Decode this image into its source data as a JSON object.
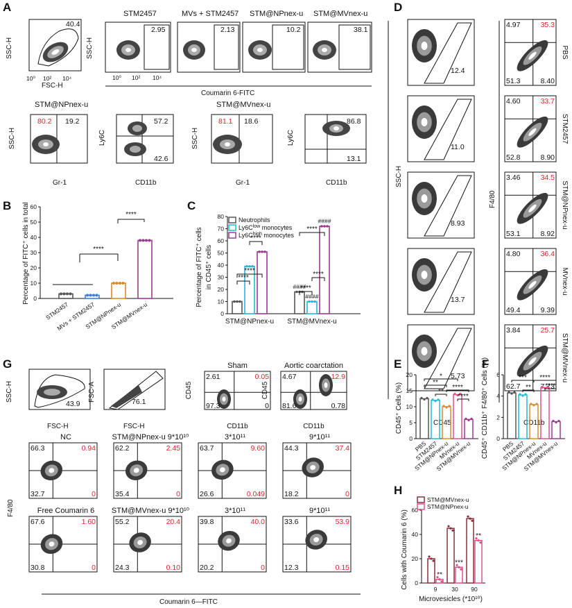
{
  "figure": {
    "panel_labels": [
      "A",
      "B",
      "C",
      "D",
      "E",
      "F",
      "G",
      "H"
    ],
    "A": {
      "scatter_xlabel": "FSC-H",
      "scatter_ylabel": "SSC-H",
      "scatter_gate": "40.4",
      "fitc_xlabel": "Coumarin 6-FITC",
      "fitc_panels": [
        {
          "title": "STM2457",
          "value": "2.95"
        },
        {
          "title": "MVs + STM2457",
          "value": "2.13"
        },
        {
          "title": "STM@NPnex-u",
          "value": "10.2"
        },
        {
          "title": "STM@MVnex-u",
          "value": "38.1"
        }
      ],
      "gr1_panels": [
        {
          "title": "STM@NPnex-u",
          "left": "80.2",
          "right": "19.2"
        },
        {
          "title": "STM@MVnex-u",
          "left": "81.1",
          "right": "18.6"
        }
      ],
      "cd11b_panels": [
        {
          "top": "57.2",
          "bottom": "42.6"
        },
        {
          "top": "86.8",
          "bottom": "13.1"
        }
      ],
      "gr1_xlabel": "Gr-1",
      "cd11b_xlabel": "CD11b",
      "ly6c_ylabel": "Ly6C",
      "ticks_log": [
        "10⁰",
        "10²",
        "10⁴"
      ]
    },
    "D": {
      "ssc_label": "SSC-H",
      "cd45_label": "CD45",
      "f480_label": "F4/80",
      "cd11b_label": "CD11b",
      "gates": [
        "12.4",
        "11.0",
        "8.93",
        "13.7",
        "5.73"
      ],
      "quads": [
        {
          "name": "PBS",
          "ul": "4.97",
          "ur": "35.3",
          "ll": "51.3",
          "lr": "8.40"
        },
        {
          "name": "STM2457",
          "ul": "4.60",
          "ur": "33.7",
          "ll": "52.8",
          "lr": "8.90"
        },
        {
          "name": "STM@NPnex-u",
          "ul": "3.46",
          "ur": "34.5",
          "ll": "53.1",
          "lr": "8.92"
        },
        {
          "name": "MVnex-u",
          "ul": "4.80",
          "ur": "36.4",
          "ll": "49.4",
          "lr": "9.39"
        },
        {
          "name": "STM@MVnex-u",
          "ul": "3.84",
          "ur": "25.7",
          "ll": "62.7",
          "lr": "7.73"
        }
      ]
    },
    "G": {
      "fsc_ssc": {
        "xlabel": "FSC-H",
        "ylabel": "SSC-H",
        "value": "43.9"
      },
      "fsc_fsca": {
        "xlabel": "FSC-H",
        "ylabel": "FSC-A",
        "value": "76.1"
      },
      "cd45_panels": [
        {
          "title": "Sham",
          "ul": "2.61",
          "ur": "0.05",
          "ll": "97.3",
          "lr": "0"
        },
        {
          "title": "Aortic coarctation",
          "ul": "4.67",
          "ur": "12.9",
          "ll": "81.6",
          "lr": "0.78"
        }
      ],
      "row2": [
        {
          "title": "NC",
          "ul": "66.3",
          "ur": "0.94",
          "ll": "32.7",
          "lr": "0"
        },
        {
          "title": "STM@NPnex-u 9*10¹⁰",
          "ul": "62.2",
          "ur": "2.45",
          "ll": "35.4",
          "lr": "0"
        },
        {
          "title": "3*10¹¹",
          "ul": "63.7",
          "ur": "9.60",
          "ll": "26.6",
          "lr": "0.049"
        },
        {
          "title": "9*10¹¹",
          "ul": "44.3",
          "ur": "37.4",
          "ll": "18.2",
          "lr": "0"
        }
      ],
      "row3": [
        {
          "title": "Free Coumarin 6",
          "ul": "67.6",
          "ur": "1.60",
          "ll": "30.8",
          "lr": "0"
        },
        {
          "title": "STM@MVnex-u 9*10¹⁰",
          "ul": "55.2",
          "ur": "20.4",
          "ll": "24.3",
          "lr": "0.10"
        },
        {
          "title": "3*10¹¹",
          "ul": "39.8",
          "ur": "40.0",
          "ll": "20.2",
          "lr": "0"
        },
        {
          "title": "9*10¹¹",
          "ul": "33.6",
          "ur": "53.9",
          "ll": "12.3",
          "lr": "0.15"
        }
      ],
      "ylabel": "F4/80",
      "xlabel": "Coumarin 6—FITC",
      "cd45_label": "CD45",
      "cd11b_label": "CD11b"
    }
  },
  "chart_data": [
    {
      "panel": "B",
      "type": "bar",
      "ylabel": "Percentage of FITC⁺ cells in total",
      "categories": [
        "STM2457",
        "MVs + STM2457",
        "STM@NPnex-u",
        "STM@MVnex-u"
      ],
      "values": [
        3.0,
        2.1,
        10.0,
        38.0
      ],
      "colors": [
        "#555555",
        "#3a7fd5",
        "#d98a2b",
        "#9b3a8f"
      ],
      "ylim": [
        0,
        60
      ],
      "yticks": [
        0,
        10,
        20,
        30,
        40,
        50,
        60
      ],
      "significance": [
        "****",
        "****"
      ]
    },
    {
      "panel": "C",
      "type": "bar",
      "ylabel": "Percentage of FITC⁺ cells in CD45⁺ cells",
      "groups": [
        "STM@NPnex-u",
        "STM@MVnex-u"
      ],
      "series": [
        {
          "name": "Neutrophils",
          "values": [
            10,
            18
          ]
        },
        {
          "name": "Ly6C low monocytes",
          "values": [
            39,
            10
          ]
        },
        {
          "name": "Ly6C high monocytes",
          "values": [
            51,
            72
          ]
        }
      ],
      "legend": [
        "Neutrophils",
        "Ly6C",
        "low",
        " monocytes",
        "Ly6C",
        "high",
        " monocytes"
      ],
      "ylim": [
        0,
        80
      ],
      "yticks": [
        0,
        10,
        20,
        30,
        40,
        50,
        60,
        70,
        80
      ],
      "significance": [
        "****",
        "****",
        "****",
        "****",
        "****",
        "****"
      ],
      "hash": "####"
    },
    {
      "panel": "E",
      "type": "bar",
      "ylabel": "CD45⁺ Cells (%)",
      "categories": [
        "PBS",
        "STM2457",
        "STM@NPnex-u",
        "MVnex-u",
        "STM@MVnex-u"
      ],
      "values": [
        12.5,
        12.0,
        10.0,
        13.8,
        6.0
      ],
      "ylim": [
        0,
        20
      ],
      "yticks": [
        0,
        5,
        10,
        15,
        20
      ],
      "significance": [
        "**",
        "*",
        "**",
        "****",
        "****"
      ]
    },
    {
      "panel": "F",
      "type": "bar",
      "ylabel": "CD45⁺ CD11b⁺ F4/80⁺ Cells (%)",
      "categories": [
        "PBS",
        "STM2457",
        "STM@NPnex-u",
        "MVnex-u",
        "STM@MVnex-u"
      ],
      "values": [
        4.3,
        4.1,
        3.2,
        4.8,
        1.6
      ],
      "ylim": [
        0,
        6
      ],
      "yticks": [
        0,
        2,
        4,
        6
      ],
      "significance": [
        "***",
        "**",
        "****",
        "****"
      ]
    },
    {
      "panel": "H",
      "type": "bar",
      "ylabel": "Cells with Coumarin 6 (%)",
      "xlabel": "Microvesicles (*10¹⁰)",
      "categories": [
        "9",
        "30",
        "90"
      ],
      "series": [
        {
          "name": "STM@MVnex-u",
          "values": [
            20,
            45,
            53
          ]
        },
        {
          "name": "STM@NPnex-u",
          "values": [
            3,
            13,
            35
          ]
        }
      ],
      "ylim": [
        0,
        60
      ],
      "yticks": [
        0,
        20,
        40,
        60
      ],
      "significance": [
        "**",
        "***",
        "**"
      ]
    }
  ]
}
